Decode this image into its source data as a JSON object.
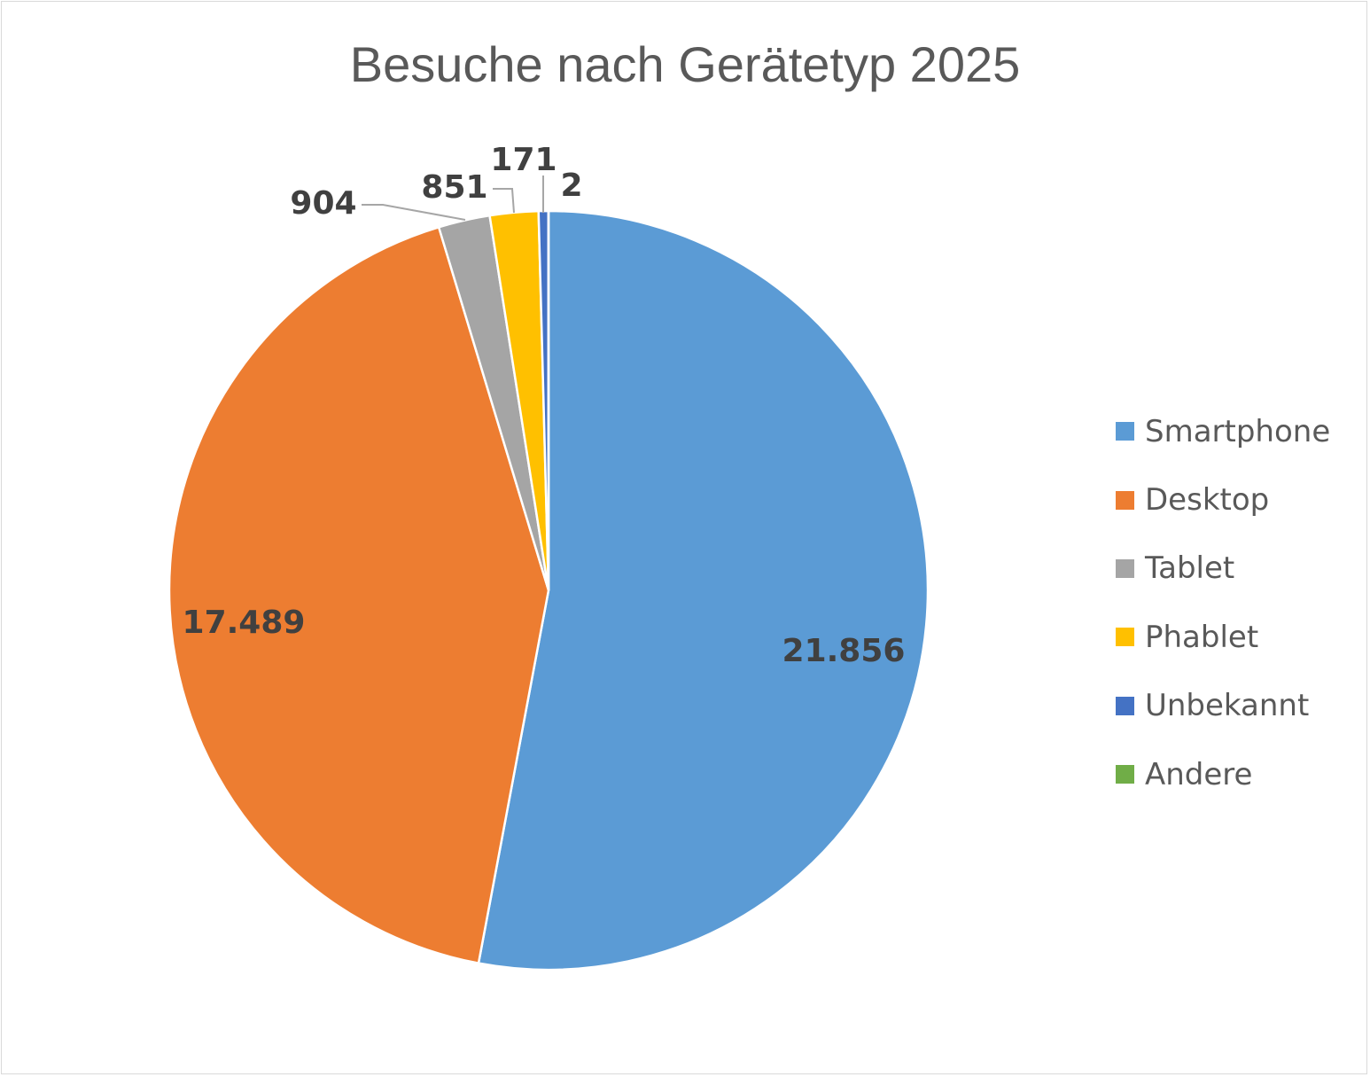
{
  "chart_data": {
    "type": "pie",
    "title": "Besuche nach Gerätetyp 2025",
    "legend_position": "right",
    "slices": [
      {
        "name": "Smartphone",
        "value": 21856,
        "label": "21.856",
        "color": "#5b9bd5"
      },
      {
        "name": "Desktop",
        "value": 17489,
        "label": "17.489",
        "color": "#ed7d31"
      },
      {
        "name": "Tablet",
        "value": 904,
        "label": "904",
        "color": "#a5a5a5"
      },
      {
        "name": "Phablet",
        "value": 851,
        "label": "851",
        "color": "#ffc000"
      },
      {
        "name": "Unbekannt",
        "value": 171,
        "label": "171",
        "color": "#4472c4"
      },
      {
        "name": "Andere",
        "value": 2,
        "label": "2",
        "color": "#70ad47"
      }
    ]
  }
}
